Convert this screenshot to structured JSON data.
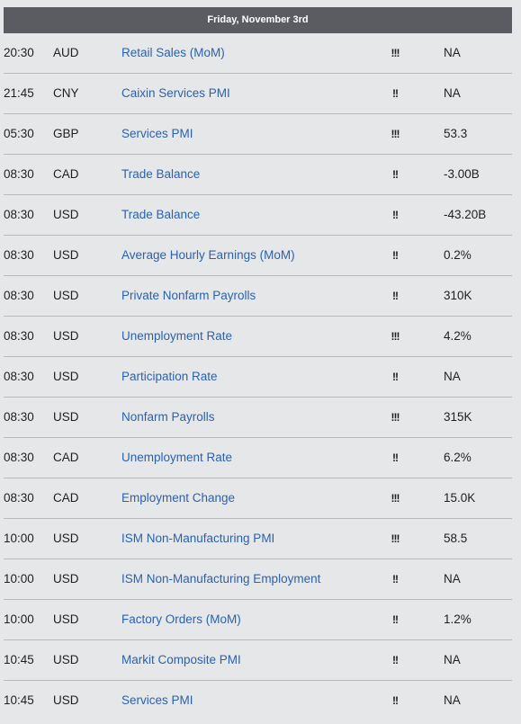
{
  "header": {
    "date": "Friday, November 3rd"
  },
  "events": [
    {
      "time": "20:30",
      "currency": "AUD",
      "event": "Retail Sales (MoM)",
      "impact": "!!!",
      "value": "NA"
    },
    {
      "time": "21:45",
      "currency": "CNY",
      "event": "Caixin Services PMI",
      "impact": "!!",
      "value": "NA"
    },
    {
      "time": "05:30",
      "currency": "GBP",
      "event": "Services PMI",
      "impact": "!!!",
      "value": "53.3"
    },
    {
      "time": "08:30",
      "currency": "CAD",
      "event": "Trade Balance",
      "impact": "!!",
      "value": "-3.00B"
    },
    {
      "time": "08:30",
      "currency": "USD",
      "event": "Trade Balance",
      "impact": "!!",
      "value": "-43.20B"
    },
    {
      "time": "08:30",
      "currency": "USD",
      "event": "Average Hourly Earnings (MoM)",
      "impact": "!!",
      "value": "0.2%"
    },
    {
      "time": "08:30",
      "currency": "USD",
      "event": "Private Nonfarm Payrolls",
      "impact": "!!",
      "value": "310K"
    },
    {
      "time": "08:30",
      "currency": "USD",
      "event": "Unemployment Rate",
      "impact": "!!!",
      "value": "4.2%"
    },
    {
      "time": "08:30",
      "currency": "USD",
      "event": "Participation Rate",
      "impact": "!!",
      "value": "NA"
    },
    {
      "time": "08:30",
      "currency": "USD",
      "event": "Nonfarm Payrolls",
      "impact": "!!!",
      "value": "315K"
    },
    {
      "time": "08:30",
      "currency": "CAD",
      "event": "Unemployment Rate",
      "impact": "!!",
      "value": "6.2%"
    },
    {
      "time": "08:30",
      "currency": "CAD",
      "event": "Employment Change",
      "impact": "!!!",
      "value": "15.0K"
    },
    {
      "time": "10:00",
      "currency": "USD",
      "event": "ISM Non-Manufacturing PMI",
      "impact": "!!!",
      "value": "58.5"
    },
    {
      "time": "10:00",
      "currency": "USD",
      "event": "ISM Non-Manufacturing Employment",
      "impact": "!!",
      "value": "NA"
    },
    {
      "time": "10:00",
      "currency": "USD",
      "event": "Factory Orders (MoM)",
      "impact": "!!",
      "value": "1.2%"
    },
    {
      "time": "10:45",
      "currency": "USD",
      "event": "Markit Composite PMI",
      "impact": "!!",
      "value": "NA"
    },
    {
      "time": "10:45",
      "currency": "USD",
      "event": "Services PMI",
      "impact": "!!",
      "value": "NA"
    }
  ]
}
